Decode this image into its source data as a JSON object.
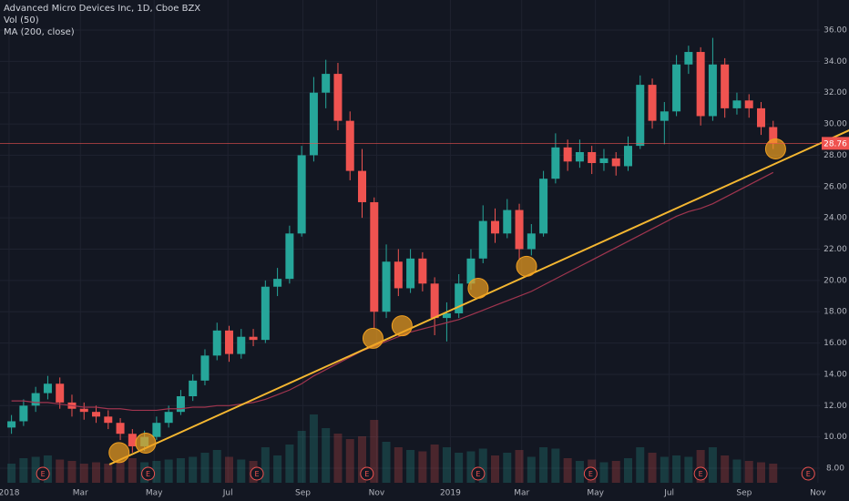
{
  "chart_data": {
    "type": "candlestick",
    "title": "Advanced Micro Devices Inc, 1D, Cboe BZX",
    "indicators": [
      "Vol (50)",
      "MA (200, close)"
    ],
    "x": [
      2,
      12,
      22,
      32,
      42,
      52,
      62,
      72,
      82,
      92,
      102,
      112,
      122,
      132,
      142,
      152,
      162,
      172,
      182,
      192,
      202,
      212,
      222,
      232,
      242,
      252,
      262,
      272,
      282,
      292,
      302,
      312,
      322,
      332,
      342,
      352,
      362,
      372,
      382,
      392,
      402,
      412,
      422,
      432,
      442,
      452,
      462,
      472,
      482,
      492,
      502,
      512,
      522,
      532,
      542,
      552,
      562,
      572,
      582,
      592,
      602,
      612,
      622,
      632
    ],
    "open": [
      10.6,
      11.0,
      12.0,
      12.8,
      13.4,
      12.2,
      11.8,
      11.6,
      11.3,
      10.9,
      10.2,
      9.4,
      10.0,
      10.9,
      11.6,
      12.6,
      13.6,
      15.2,
      16.8,
      15.3,
      16.4,
      16.2,
      19.6,
      20.1,
      23.0,
      28.0,
      32.0,
      33.2,
      30.2,
      27.0,
      25.0,
      18.0,
      21.2,
      19.5,
      21.4,
      19.8,
      17.6,
      17.9,
      19.8,
      21.4,
      23.8,
      23.0,
      24.5,
      22.0,
      23.0,
      26.5,
      28.5,
      27.6,
      28.2,
      27.5,
      27.8,
      27.3,
      28.6,
      32.5,
      30.2,
      30.8,
      33.8,
      34.6,
      30.5,
      33.8,
      31.0,
      31.5,
      31.0,
      29.8
    ],
    "high": [
      11.4,
      12.4,
      13.2,
      13.9,
      13.8,
      12.7,
      12.2,
      12.0,
      11.7,
      11.2,
      10.5,
      10.4,
      11.3,
      12.0,
      13.0,
      14.0,
      15.6,
      17.3,
      17.1,
      16.9,
      16.9,
      20.0,
      20.8,
      23.5,
      28.6,
      33.0,
      34.1,
      33.9,
      30.8,
      28.4,
      25.3,
      22.3,
      22.0,
      22.0,
      21.8,
      20.2,
      18.6,
      20.4,
      22.0,
      24.8,
      24.6,
      25.2,
      24.9,
      23.6,
      27.0,
      29.4,
      29.0,
      29.0,
      28.6,
      28.4,
      28.2,
      29.2,
      33.1,
      32.9,
      31.4,
      34.4,
      35.0,
      34.9,
      35.5,
      34.2,
      32.0,
      31.9,
      31.4,
      30.2
    ],
    "low": [
      10.2,
      10.7,
      11.6,
      12.4,
      11.8,
      11.3,
      11.1,
      10.9,
      10.5,
      9.8,
      9.0,
      9.1,
      9.8,
      10.6,
      11.4,
      12.3,
      13.3,
      14.9,
      14.8,
      15.0,
      15.8,
      16.0,
      19.0,
      19.8,
      22.8,
      27.6,
      31.0,
      29.6,
      26.4,
      24.0,
      16.9,
      17.6,
      19.0,
      19.2,
      19.3,
      16.5,
      16.1,
      17.6,
      19.4,
      21.1,
      22.4,
      22.7,
      21.3,
      21.6,
      22.8,
      26.2,
      27.0,
      27.2,
      26.8,
      27.0,
      26.7,
      27.0,
      28.4,
      29.7,
      28.7,
      30.5,
      33.2,
      29.9,
      30.2,
      30.4,
      30.6,
      30.4,
      29.3,
      28.4
    ],
    "close": [
      11.0,
      12.0,
      12.8,
      13.4,
      12.2,
      11.8,
      11.6,
      11.3,
      10.9,
      10.2,
      9.4,
      10.0,
      10.9,
      11.6,
      12.6,
      13.6,
      15.2,
      16.8,
      15.3,
      16.4,
      16.2,
      19.6,
      20.1,
      23.0,
      28.0,
      32.0,
      33.2,
      30.2,
      27.0,
      25.0,
      18.0,
      21.2,
      19.5,
      21.4,
      19.8,
      17.6,
      17.9,
      19.8,
      21.4,
      23.8,
      23.0,
      24.5,
      22.0,
      23.0,
      26.5,
      28.5,
      27.6,
      28.2,
      27.5,
      27.8,
      27.3,
      28.6,
      32.5,
      30.2,
      30.8,
      33.8,
      34.6,
      30.5,
      33.8,
      31.0,
      31.5,
      31.0,
      29.8,
      28.76
    ],
    "volume": [
      70,
      90,
      95,
      100,
      85,
      80,
      70,
      75,
      70,
      80,
      90,
      75,
      80,
      85,
      90,
      95,
      110,
      120,
      95,
      85,
      80,
      130,
      100,
      140,
      190,
      250,
      200,
      180,
      160,
      170,
      230,
      150,
      130,
      120,
      115,
      140,
      130,
      110,
      115,
      125,
      100,
      110,
      120,
      95,
      130,
      125,
      90,
      80,
      85,
      75,
      80,
      90,
      130,
      110,
      95,
      100,
      95,
      120,
      130,
      100,
      85,
      80,
      75,
      70
    ],
    "volume_lim": [
      0,
      500
    ],
    "ma": {
      "name": "MA (200, close)",
      "color": "#a0354f",
      "values": [
        12.3,
        12.3,
        12.2,
        12.2,
        12.1,
        12.0,
        11.9,
        11.9,
        11.8,
        11.8,
        11.7,
        11.7,
        11.7,
        11.8,
        11.8,
        11.9,
        11.9,
        12.0,
        12.0,
        12.1,
        12.2,
        12.4,
        12.7,
        13.0,
        13.4,
        13.9,
        14.3,
        14.7,
        15.1,
        15.5,
        15.8,
        16.1,
        16.4,
        16.7,
        16.9,
        17.1,
        17.3,
        17.5,
        17.8,
        18.1,
        18.4,
        18.7,
        19.0,
        19.3,
        19.7,
        20.1,
        20.5,
        20.9,
        21.3,
        21.7,
        22.1,
        22.5,
        22.9,
        23.3,
        23.7,
        24.1,
        24.4,
        24.6,
        24.9,
        25.3,
        25.7,
        26.1,
        26.5,
        26.9
      ]
    },
    "trendline": {
      "color": "#f5b731",
      "x": [
        83,
        695
      ],
      "y": [
        8.24,
        29.6
      ]
    },
    "highlights": {
      "color": "#f0a020",
      "x": [
        91,
        113,
        301,
        325,
        388,
        428,
        634
      ],
      "y": [
        9.0,
        9.6,
        16.3,
        17.1,
        19.5,
        20.9,
        28.4
      ]
    },
    "earnings": {
      "label": "E",
      "x": [
        28,
        115,
        205,
        296,
        388,
        481,
        572,
        661
      ]
    },
    "up_color": "#26a69a",
    "down_color": "#ef5350",
    "grid": true,
    "xlim": [
      -7.5,
      670.6
    ],
    "ylim": [
      7.07,
      37.92
    ],
    "xticks": [
      {
        "value": 0,
        "label": "2018"
      },
      {
        "value": 59,
        "label": "Mar"
      },
      {
        "value": 120,
        "label": "May"
      },
      {
        "value": 181,
        "label": "Jul"
      },
      {
        "value": 243,
        "label": "Sep"
      },
      {
        "value": 304,
        "label": "Nov"
      },
      {
        "value": 365,
        "label": "2019"
      },
      {
        "value": 424,
        "label": "Mar"
      },
      {
        "value": 485,
        "label": "May"
      },
      {
        "value": 546,
        "label": "Jul"
      },
      {
        "value": 608,
        "label": "Sep"
      },
      {
        "value": 669,
        "label": "Nov"
      }
    ],
    "yticks": [
      {
        "value": 8,
        "label": "8.00"
      },
      {
        "value": 10,
        "label": "10.00"
      },
      {
        "value": 12,
        "label": "12.00"
      },
      {
        "value": 14,
        "label": "14.00"
      },
      {
        "value": 16,
        "label": "16.00"
      },
      {
        "value": 18,
        "label": "18.00"
      },
      {
        "value": 20,
        "label": "20.00"
      },
      {
        "value": 22,
        "label": "22.00"
      },
      {
        "value": 24,
        "label": "24.00"
      },
      {
        "value": 26,
        "label": "26.00"
      },
      {
        "value": 28,
        "label": "28.00"
      },
      {
        "value": 30,
        "label": "30.00"
      },
      {
        "value": 32,
        "label": "32.00"
      },
      {
        "value": 34,
        "label": "34.00"
      },
      {
        "value": 36,
        "label": "36.00"
      }
    ]
  }
}
